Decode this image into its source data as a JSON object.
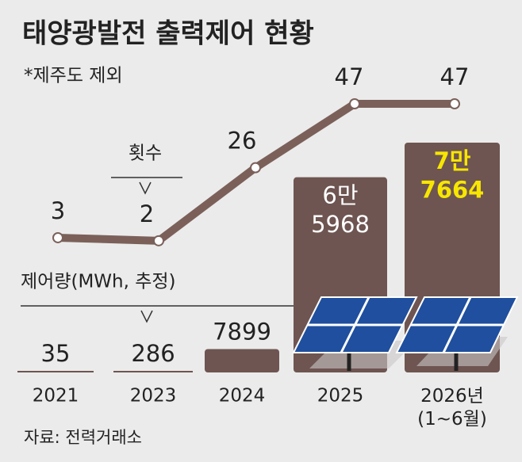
{
  "chart_data": {
    "type": "combo",
    "title": "태양광발전 출력제어 현황",
    "subtitle": "*제주도 제외",
    "source": "자료: 전력거래소",
    "categories": [
      "2021",
      "2023",
      "2024",
      "2025",
      "2026년\n(1~6월)"
    ],
    "series": [
      {
        "name": "제어량(MWh, 추정)",
        "type": "bar",
        "color": "#6e5551",
        "values": [
          35,
          286,
          7899,
          65968,
          77664
        ],
        "value_labels": [
          "35",
          "286",
          "7899",
          "6만\n5968",
          "7만\n7664"
        ],
        "highlight_color": "#f7e600"
      },
      {
        "name": "횟수",
        "type": "line",
        "color": "#7b605a",
        "values": [
          3,
          2,
          26,
          47,
          47
        ]
      }
    ]
  }
}
